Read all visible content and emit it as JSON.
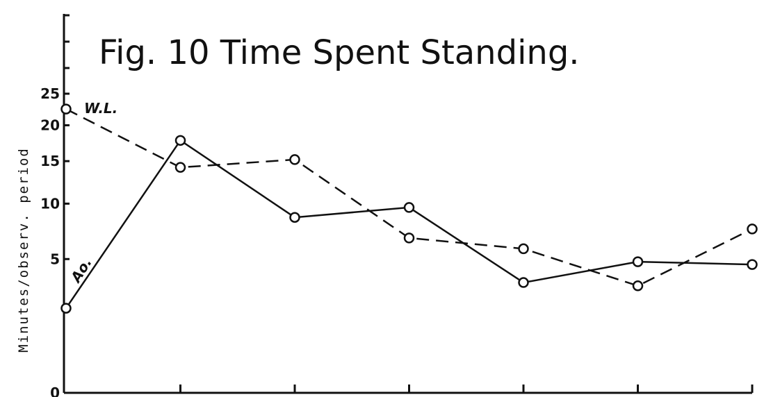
{
  "chart_data": {
    "type": "line",
    "title": "Fig. 10   Time Spent Standing.",
    "xlabel": "",
    "ylabel": "Minutes/observ. period",
    "ylim": [
      0,
      25
    ],
    "y_ticks": [
      0,
      5,
      10,
      15,
      20,
      25
    ],
    "y_scale": "sqrt",
    "x": [
      1,
      2,
      3,
      4,
      5,
      6,
      7
    ],
    "grid": false,
    "legend": "none",
    "series": [
      {
        "name": "W.L.",
        "style": "dashed",
        "color": "#111111",
        "values": [
          22.5,
          14.2,
          15.2,
          6.7,
          5.8,
          3.2,
          7.5
        ]
      },
      {
        "name": "Ao.",
        "style": "solid",
        "color": "#111111",
        "values": [
          2.0,
          17.8,
          8.6,
          9.6,
          3.4,
          4.8,
          4.6
        ]
      }
    ]
  }
}
